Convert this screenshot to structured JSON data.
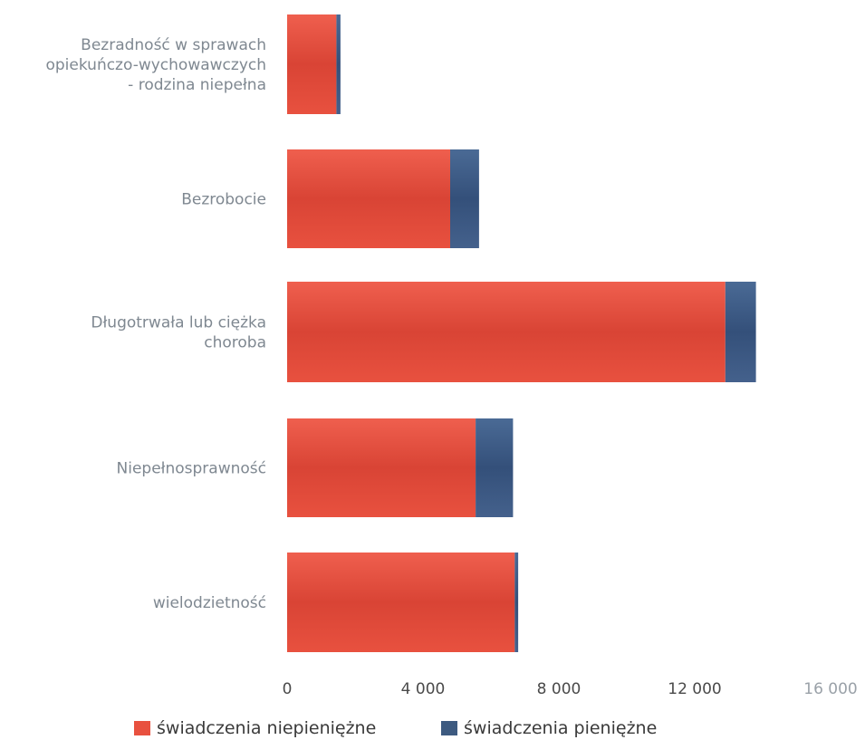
{
  "chart_data": {
    "type": "bar",
    "orientation": "horizontal",
    "stacked": true,
    "categories": [
      [
        "Bezradność w sprawach",
        "opiekuńczo-wychowawczych",
        "- rodzina niepełna"
      ],
      [
        "Bezrobocie"
      ],
      [
        "Długotrwała lub ciężka",
        "choroba"
      ],
      [
        "Niepełnosprawność"
      ],
      [
        "wielodzietność"
      ]
    ],
    "series": [
      {
        "name": "świadczenia niepieniężne",
        "color": "#e34a3c",
        "values": [
          1450,
          4800,
          12900,
          5550,
          6700
        ]
      },
      {
        "name": "świadczenia pieniężne",
        "color": "#3d5a80",
        "values": [
          120,
          850,
          900,
          1100,
          100
        ]
      }
    ],
    "xlim": [
      0,
      16000
    ],
    "xticks": [
      "0",
      "4 000",
      "8 000",
      "12 000",
      "16 000"
    ],
    "grid": false,
    "legend_position": "bottom"
  }
}
